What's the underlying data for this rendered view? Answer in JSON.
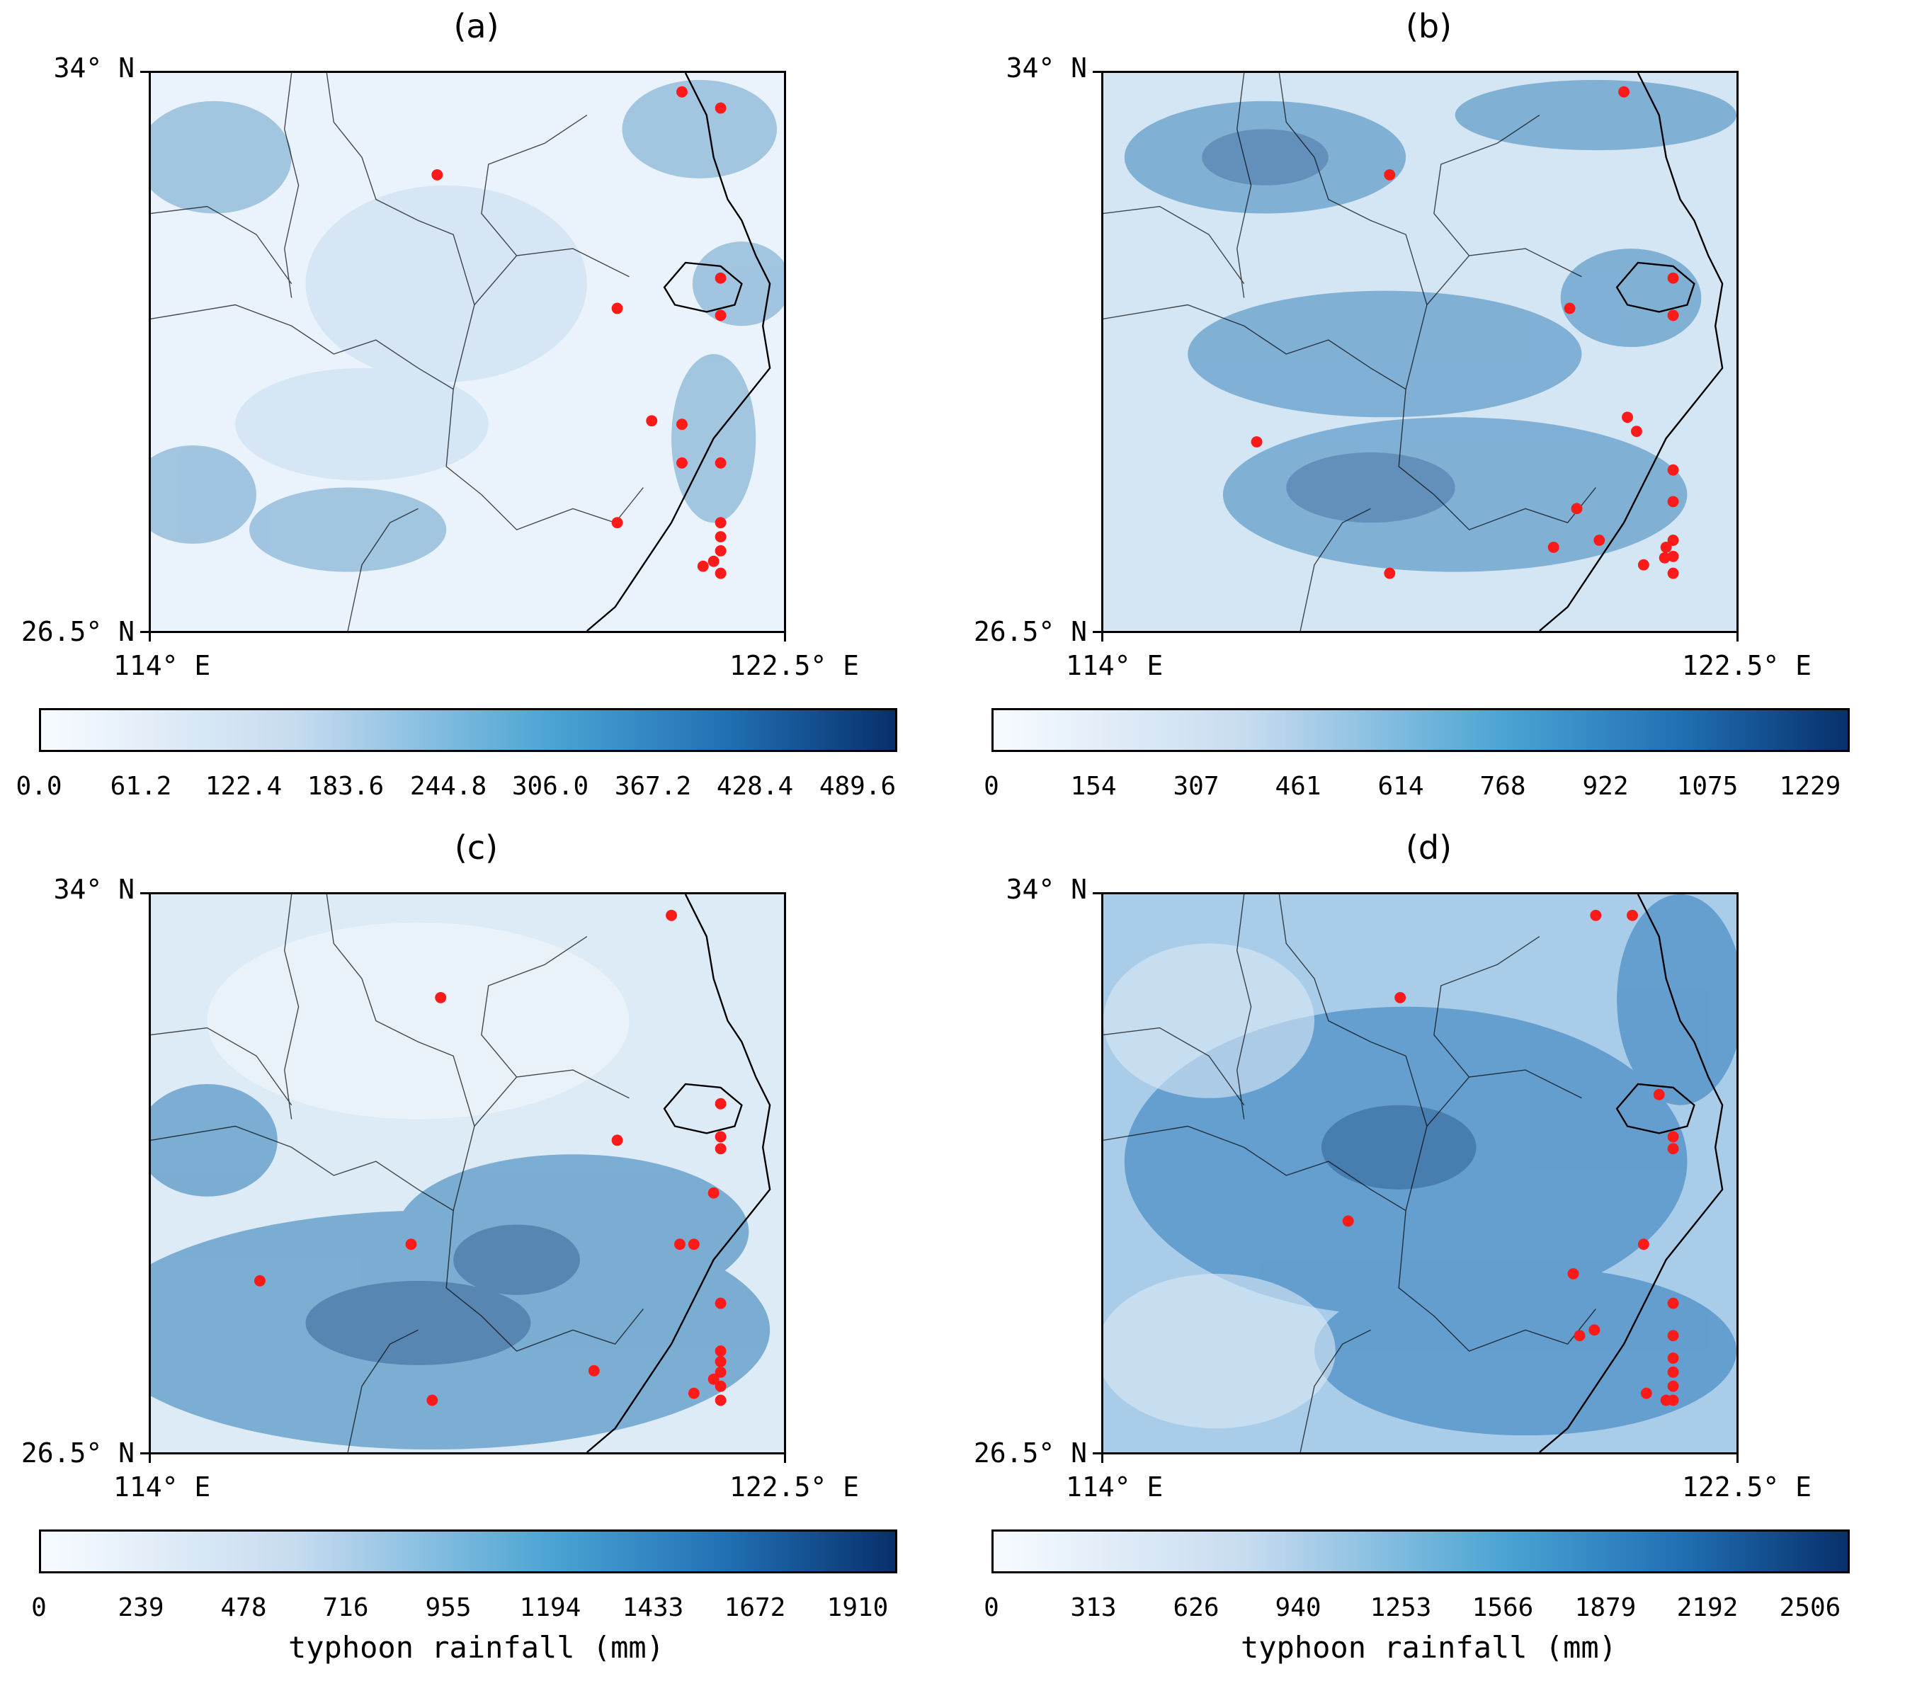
{
  "panels": [
    {
      "title": "(a)",
      "colorbar_ticks": [
        "0.0",
        "61.2",
        "122.4",
        "183.6",
        "244.8",
        "306.0",
        "367.2",
        "428.4",
        "489.6"
      ],
      "colorbar_label": ""
    },
    {
      "title": "(b)",
      "colorbar_ticks": [
        "0",
        "154",
        "307",
        "461",
        "614",
        "768",
        "922",
        "1075",
        "1229"
      ],
      "colorbar_label": ""
    },
    {
      "title": "(c)",
      "colorbar_ticks": [
        "0",
        "239",
        "478",
        "716",
        "955",
        "1194",
        "1433",
        "1672",
        "1910"
      ],
      "colorbar_label": "typhoon rainfall (mm)"
    },
    {
      "title": "(d)",
      "colorbar_ticks": [
        "0",
        "313",
        "626",
        "940",
        "1253",
        "1566",
        "1879",
        "2192",
        "2506"
      ],
      "colorbar_label": "typhoon rainfall (mm)"
    }
  ],
  "axes": {
    "lat_top": "34° N",
    "lat_bottom": "26.5° N",
    "lon_left": "114° E",
    "lon_right": "122.5° E"
  },
  "colors": {
    "scale_low": "#f7fbff",
    "scale_mid": "#4aa3d3",
    "scale_high": "#08306b",
    "station": "#ff1a1a"
  }
}
